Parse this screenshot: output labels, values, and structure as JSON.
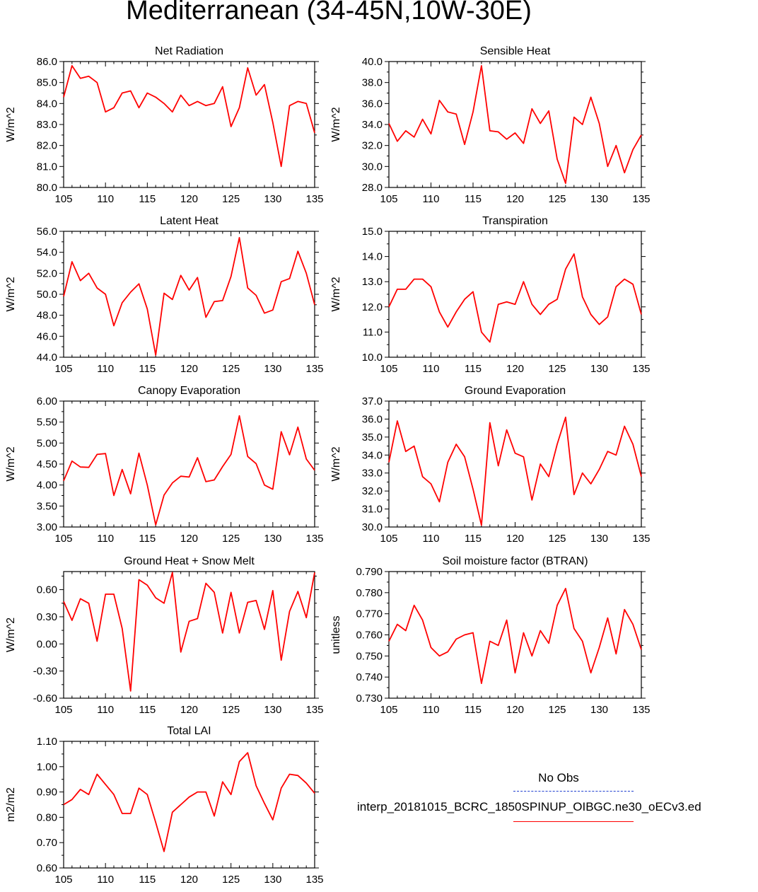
{
  "title": "Mediterranean (34-45N,10W-30E)",
  "legend": {
    "obs_label": "No Obs",
    "model_label": "interp_20181015_BCRC_1850SPINUP_OIBGC.ne30_oECv3.ed",
    "obs_color": "#1f3fd0",
    "model_color": "#ff0000"
  },
  "chart_data": [
    {
      "type": "line",
      "title": "Net Radiation",
      "ylabel": "W/m^2",
      "xlim": [
        105,
        135
      ],
      "ylim": [
        80.0,
        86.0
      ],
      "xticks": [
        105,
        110,
        115,
        120,
        125,
        130,
        135
      ],
      "yticks": [
        "80.0",
        "81.0",
        "82.0",
        "83.0",
        "84.0",
        "85.0",
        "86.0"
      ],
      "x": [
        105,
        106,
        107,
        108,
        109,
        110,
        111,
        112,
        113,
        114,
        115,
        116,
        117,
        118,
        119,
        120,
        121,
        122,
        123,
        124,
        125,
        126,
        127,
        128,
        129,
        130,
        131,
        132,
        133,
        134,
        135
      ],
      "series": [
        {
          "color": "#ff0000",
          "values": [
            84.3,
            85.8,
            85.2,
            85.3,
            85.0,
            83.6,
            83.8,
            84.5,
            84.6,
            83.8,
            84.5,
            84.3,
            84.0,
            83.6,
            84.4,
            83.9,
            84.1,
            83.9,
            84.0,
            84.8,
            82.9,
            83.8,
            85.7,
            84.4,
            84.9,
            83.1,
            81.0,
            83.9,
            84.1,
            84.0,
            82.6
          ]
        }
      ]
    },
    {
      "type": "line",
      "title": "Sensible Heat",
      "ylabel": "W/m^2",
      "xlim": [
        105,
        135
      ],
      "ylim": [
        28.0,
        40.0
      ],
      "xticks": [
        105,
        110,
        115,
        120,
        125,
        130,
        135
      ],
      "yticks": [
        "28.0",
        "30.0",
        "32.0",
        "34.0",
        "36.0",
        "38.0",
        "40.0"
      ],
      "x": [
        105,
        106,
        107,
        108,
        109,
        110,
        111,
        112,
        113,
        114,
        115,
        116,
        117,
        118,
        119,
        120,
        121,
        122,
        123,
        124,
        125,
        126,
        127,
        128,
        129,
        130,
        131,
        132,
        133,
        134,
        135
      ],
      "series": [
        {
          "color": "#ff0000",
          "values": [
            34.1,
            32.4,
            33.4,
            32.8,
            34.5,
            33.1,
            36.3,
            35.2,
            35.0,
            32.1,
            35.2,
            39.6,
            33.4,
            33.3,
            32.6,
            33.2,
            32.2,
            35.5,
            34.1,
            35.3,
            30.7,
            28.4,
            34.7,
            34.0,
            36.6,
            34.1,
            30.0,
            32.0,
            29.4,
            31.6,
            33.0
          ]
        }
      ]
    },
    {
      "type": "line",
      "title": "Latent Heat",
      "ylabel": "W/m^2",
      "xlim": [
        105,
        135
      ],
      "ylim": [
        44.0,
        56.0
      ],
      "xticks": [
        105,
        110,
        115,
        120,
        125,
        130,
        135
      ],
      "yticks": [
        "44.0",
        "46.0",
        "48.0",
        "50.0",
        "52.0",
        "54.0",
        "56.0"
      ],
      "x": [
        105,
        106,
        107,
        108,
        109,
        110,
        111,
        112,
        113,
        114,
        115,
        116,
        117,
        118,
        119,
        120,
        121,
        122,
        123,
        124,
        125,
        126,
        127,
        128,
        129,
        130,
        131,
        132,
        133,
        134,
        135
      ],
      "series": [
        {
          "color": "#ff0000",
          "values": [
            49.8,
            53.1,
            51.3,
            52.0,
            50.6,
            50.0,
            47.0,
            49.2,
            50.2,
            51.0,
            48.6,
            44.2,
            50.1,
            49.5,
            51.8,
            50.4,
            51.6,
            47.8,
            49.3,
            49.4,
            51.7,
            55.4,
            50.6,
            49.9,
            48.2,
            48.5,
            51.2,
            51.5,
            54.1,
            52.0,
            49.0
          ]
        }
      ]
    },
    {
      "type": "line",
      "title": "Transpiration",
      "ylabel": "W/m^2",
      "xlim": [
        105,
        135
      ],
      "ylim": [
        10.0,
        15.0
      ],
      "xticks": [
        105,
        110,
        115,
        120,
        125,
        130,
        135
      ],
      "yticks": [
        "10.0",
        "11.0",
        "12.0",
        "13.0",
        "14.0",
        "15.0"
      ],
      "x": [
        105,
        106,
        107,
        108,
        109,
        110,
        111,
        112,
        113,
        114,
        115,
        116,
        117,
        118,
        119,
        120,
        121,
        122,
        123,
        124,
        125,
        126,
        127,
        128,
        129,
        130,
        131,
        132,
        133,
        134,
        135
      ],
      "series": [
        {
          "color": "#ff0000",
          "values": [
            12.0,
            12.7,
            12.7,
            13.1,
            13.1,
            12.8,
            11.8,
            11.2,
            11.8,
            12.3,
            12.6,
            11.0,
            10.6,
            12.1,
            12.2,
            12.1,
            13.0,
            12.1,
            11.7,
            12.1,
            12.3,
            13.5,
            14.1,
            12.4,
            11.7,
            11.3,
            11.6,
            12.8,
            13.1,
            12.9,
            11.7
          ]
        }
      ]
    },
    {
      "type": "line",
      "title": "Canopy Evaporation",
      "ylabel": "W/m^2",
      "xlim": [
        105,
        135
      ],
      "ylim": [
        3.0,
        6.0
      ],
      "xticks": [
        105,
        110,
        115,
        120,
        125,
        130,
        135
      ],
      "yticks": [
        "3.00",
        "3.50",
        "4.00",
        "4.50",
        "5.00",
        "5.50",
        "6.00"
      ],
      "x": [
        105,
        106,
        107,
        108,
        109,
        110,
        111,
        112,
        113,
        114,
        115,
        116,
        117,
        118,
        119,
        120,
        121,
        122,
        123,
        124,
        125,
        126,
        127,
        128,
        129,
        130,
        131,
        132,
        133,
        134,
        135
      ],
      "series": [
        {
          "color": "#ff0000",
          "values": [
            4.1,
            4.57,
            4.43,
            4.42,
            4.73,
            4.75,
            3.75,
            4.37,
            3.79,
            4.76,
            4.0,
            3.05,
            3.76,
            4.05,
            4.21,
            4.19,
            4.65,
            4.08,
            4.12,
            4.44,
            4.73,
            5.65,
            4.68,
            4.51,
            4.0,
            3.9,
            5.27,
            4.72,
            5.38,
            4.62,
            4.35
          ]
        }
      ]
    },
    {
      "type": "line",
      "title": "Ground Evaporation",
      "ylabel": "W/m^2",
      "xlim": [
        105,
        135
      ],
      "ylim": [
        30.0,
        37.0
      ],
      "xticks": [
        105,
        110,
        115,
        120,
        125,
        130,
        135
      ],
      "yticks": [
        "30.0",
        "31.0",
        "32.0",
        "33.0",
        "34.0",
        "35.0",
        "36.0",
        "37.0"
      ],
      "x": [
        105,
        106,
        107,
        108,
        109,
        110,
        111,
        112,
        113,
        114,
        115,
        116,
        117,
        118,
        119,
        120,
        121,
        122,
        123,
        124,
        125,
        126,
        127,
        128,
        129,
        130,
        131,
        132,
        133,
        134,
        135
      ],
      "series": [
        {
          "color": "#ff0000",
          "values": [
            33.6,
            35.9,
            34.2,
            34.5,
            32.8,
            32.4,
            31.4,
            33.6,
            34.6,
            33.9,
            32.1,
            30.1,
            35.8,
            33.4,
            35.4,
            34.1,
            33.9,
            31.5,
            33.5,
            32.8,
            34.6,
            36.1,
            31.8,
            33.0,
            32.4,
            33.2,
            34.2,
            34.0,
            35.6,
            34.6,
            32.8
          ]
        }
      ]
    },
    {
      "type": "line",
      "title": "Ground Heat + Snow Melt",
      "ylabel": "W/m^2",
      "xlim": [
        105,
        135
      ],
      "ylim": [
        -0.6,
        0.8
      ],
      "xticks": [
        105,
        110,
        115,
        120,
        125,
        130,
        135
      ],
      "yticks": [
        "-0.60",
        "-0.30",
        "0.00",
        "0.30",
        "0.60"
      ],
      "ytickvals": [
        -0.6,
        -0.3,
        0.0,
        0.3,
        0.6
      ],
      "x": [
        105,
        106,
        107,
        108,
        109,
        110,
        111,
        112,
        113,
        114,
        115,
        116,
        117,
        118,
        119,
        120,
        121,
        122,
        123,
        124,
        125,
        126,
        127,
        128,
        129,
        130,
        131,
        132,
        133,
        134,
        135
      ],
      "series": [
        {
          "color": "#ff0000",
          "values": [
            0.47,
            0.26,
            0.5,
            0.45,
            0.03,
            0.55,
            0.55,
            0.17,
            -0.52,
            0.71,
            0.65,
            0.51,
            0.45,
            0.79,
            -0.09,
            0.25,
            0.28,
            0.67,
            0.57,
            0.12,
            0.57,
            0.12,
            0.46,
            0.48,
            0.16,
            0.59,
            -0.18,
            0.36,
            0.58,
            0.29,
            0.79
          ]
        }
      ]
    },
    {
      "type": "line",
      "title": "Soil moisture factor (BTRAN)",
      "ylabel": "unitless",
      "xlim": [
        105,
        135
      ],
      "ylim": [
        0.73,
        0.79
      ],
      "xticks": [
        105,
        110,
        115,
        120,
        125,
        130,
        135
      ],
      "yticks": [
        "0.730",
        "0.740",
        "0.750",
        "0.760",
        "0.770",
        "0.780",
        "0.790"
      ],
      "x": [
        105,
        106,
        107,
        108,
        109,
        110,
        111,
        112,
        113,
        114,
        115,
        116,
        117,
        118,
        119,
        120,
        121,
        122,
        123,
        124,
        125,
        126,
        127,
        128,
        129,
        130,
        131,
        132,
        133,
        134,
        135
      ],
      "series": [
        {
          "color": "#ff0000",
          "values": [
            0.757,
            0.765,
            0.762,
            0.774,
            0.767,
            0.754,
            0.75,
            0.752,
            0.758,
            0.76,
            0.761,
            0.737,
            0.757,
            0.755,
            0.767,
            0.742,
            0.761,
            0.75,
            0.762,
            0.756,
            0.774,
            0.782,
            0.763,
            0.757,
            0.742,
            0.754,
            0.768,
            0.751,
            0.772,
            0.765,
            0.753
          ]
        }
      ]
    },
    {
      "type": "line",
      "title": "Total LAI",
      "ylabel": "m2/m2",
      "xlim": [
        105,
        135
      ],
      "ylim": [
        0.6,
        1.1
      ],
      "xticks": [
        105,
        110,
        115,
        120,
        125,
        130,
        135
      ],
      "yticks": [
        "0.60",
        "0.70",
        "0.80",
        "0.90",
        "1.00",
        "1.10"
      ],
      "x": [
        105,
        106,
        107,
        108,
        109,
        110,
        111,
        112,
        113,
        114,
        115,
        116,
        117,
        118,
        119,
        120,
        121,
        122,
        123,
        124,
        125,
        126,
        127,
        128,
        129,
        130,
        131,
        132,
        133,
        134,
        135
      ],
      "series": [
        {
          "color": "#ff0000",
          "values": [
            0.85,
            0.87,
            0.91,
            0.89,
            0.97,
            0.93,
            0.89,
            0.815,
            0.815,
            0.915,
            0.89,
            0.78,
            0.665,
            0.82,
            0.85,
            0.88,
            0.9,
            0.9,
            0.805,
            0.94,
            0.89,
            1.02,
            1.055,
            0.925,
            0.855,
            0.79,
            0.915,
            0.97,
            0.965,
            0.935,
            0.895
          ]
        }
      ]
    }
  ]
}
